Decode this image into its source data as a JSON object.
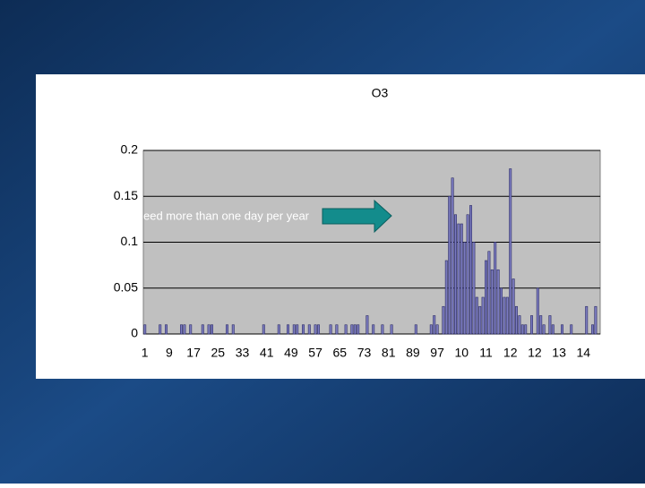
{
  "chart_data": {
    "type": "bar",
    "title": "O3",
    "annotation": "eed more than one day per year",
    "categories": [
      "1",
      null,
      null,
      null,
      null,
      null,
      null,
      null,
      "9",
      null,
      null,
      null,
      null,
      null,
      null,
      null,
      "17",
      null,
      null,
      null,
      null,
      null,
      null,
      null,
      "25",
      null,
      null,
      null,
      null,
      null,
      null,
      null,
      "33",
      null,
      null,
      null,
      null,
      null,
      null,
      null,
      "41",
      null,
      null,
      null,
      null,
      null,
      null,
      null,
      "49",
      null,
      null,
      null,
      null,
      null,
      null,
      null,
      "57",
      null,
      null,
      null,
      null,
      null,
      null,
      null,
      "65",
      null,
      null,
      null,
      null,
      null,
      null,
      null,
      "73",
      null,
      null,
      null,
      null,
      null,
      null,
      null,
      "81",
      null,
      null,
      null,
      null,
      null,
      null,
      null,
      "89",
      null,
      null,
      null,
      null,
      null,
      null,
      null,
      "97",
      null,
      null,
      null,
      null,
      null,
      null,
      null,
      "10",
      null,
      null,
      null,
      null,
      null,
      null,
      null,
      "11",
      null,
      null,
      null,
      null,
      null,
      null,
      null,
      "12",
      null,
      null,
      null,
      null,
      null,
      null,
      null,
      "12",
      null,
      null,
      null,
      null,
      null,
      null,
      null,
      "13",
      null,
      null,
      null,
      null,
      null,
      null,
      null,
      "14",
      null,
      null,
      null,
      null,
      null
    ],
    "values": [
      0.01,
      0,
      0,
      0,
      0,
      0.01,
      0,
      0.01,
      0,
      0,
      0,
      0,
      0.01,
      0.01,
      0,
      0.01,
      0,
      0,
      0,
      0.01,
      0,
      0.01,
      0.01,
      0,
      0,
      0,
      0,
      0.01,
      0,
      0.01,
      0,
      0,
      0,
      0,
      0,
      0,
      0,
      0,
      0,
      0.01,
      0,
      0,
      0,
      0,
      0.01,
      0,
      0,
      0.01,
      0,
      0.01,
      0.01,
      0,
      0.01,
      0,
      0.01,
      0,
      0.01,
      0.01,
      0,
      0,
      0,
      0.01,
      0,
      0.01,
      0,
      0,
      0.01,
      0,
      0.01,
      0.01,
      0.01,
      0,
      0,
      0.02,
      0,
      0.01,
      0,
      0,
      0.01,
      0,
      0,
      0.01,
      0,
      0,
      0,
      0,
      0,
      0,
      0,
      0.01,
      0,
      0,
      0,
      0,
      0.01,
      0.02,
      0.01,
      0,
      0.03,
      0.08,
      0.15,
      0.17,
      0.13,
      0.12,
      0.12,
      0.1,
      0.13,
      0.14,
      0.1,
      0.04,
      0.03,
      0.04,
      0.08,
      0.09,
      0.07,
      0.1,
      0.07,
      0.05,
      0.04,
      0.04,
      0.18,
      0.06,
      0.03,
      0.02,
      0.01,
      0.01,
      0,
      0.02,
      0,
      0.05,
      0.02,
      0.01,
      0,
      0.02,
      0.01,
      0,
      0,
      0.01,
      0,
      0,
      0.01,
      0,
      0,
      0,
      0,
      0.03,
      0,
      0.01,
      0.03,
      0
    ],
    "color": "#7b7bbf",
    "ylim": [
      0,
      0.2
    ],
    "yticks": [
      0,
      0.05,
      0.1,
      0.15,
      0.2
    ],
    "grid": true
  }
}
